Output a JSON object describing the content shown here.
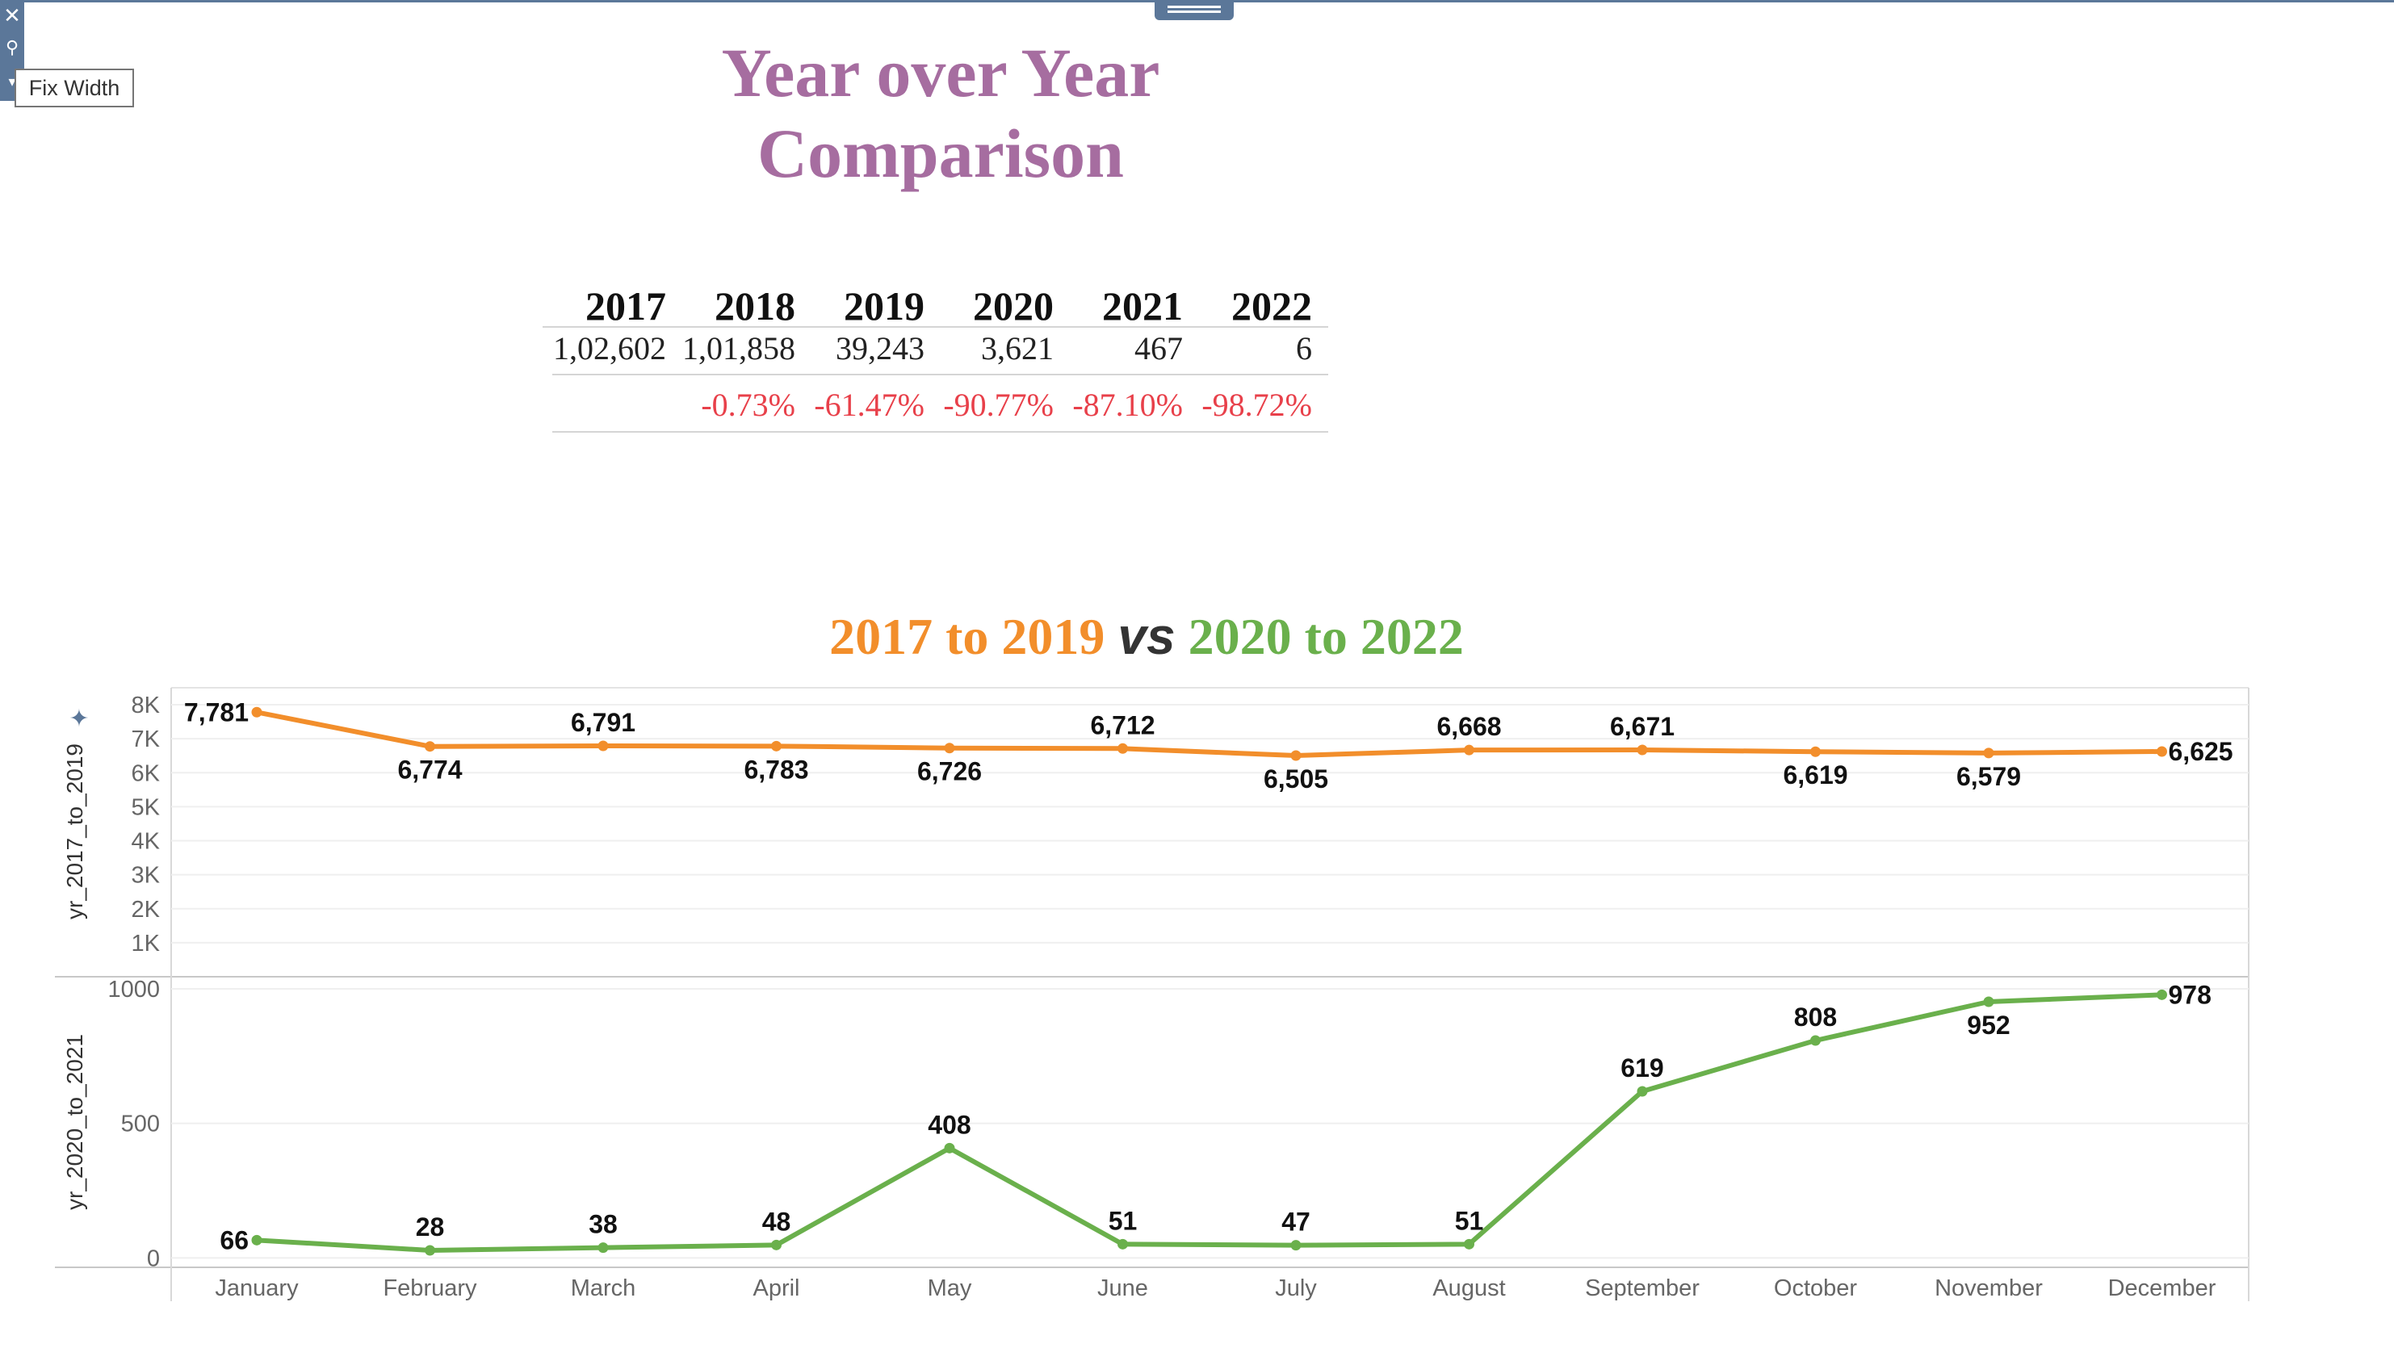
{
  "toolbar": {
    "close_icon": "close-icon",
    "pin_icon": "pin-icon",
    "menu_icon": "dropdown-arrow-icon",
    "fix_width_label": "Fix Width"
  },
  "title": {
    "line1": "Year over Year",
    "line2": "Comparison"
  },
  "colors": {
    "title": "#a66da0",
    "orange": "#f28e2b",
    "green": "#6ab04c",
    "negative": "#e8404a"
  },
  "yoy_table": {
    "years": [
      "2017",
      "2018",
      "2019",
      "2020",
      "2021",
      "2022"
    ],
    "totals": [
      "1,02,602",
      "1,01,858",
      "39,243",
      "3,621",
      "467",
      "6"
    ],
    "pct_change": [
      "",
      "-0.73%",
      "-61.47%",
      "-90.77%",
      "-87.10%",
      "-98.72%"
    ]
  },
  "chart_title": {
    "part1": "2017 to 2019",
    "vs": "vs",
    "part2": "2020 to 2022"
  },
  "chart_data": {
    "type": "line",
    "categories": [
      "January",
      "February",
      "March",
      "April",
      "May",
      "June",
      "July",
      "August",
      "September",
      "October",
      "November",
      "December"
    ],
    "series": [
      {
        "name": "yr_2017_to_2019",
        "color": "#f28e2b",
        "values": [
          7781,
          6774,
          6791,
          6783,
          6726,
          6712,
          6505,
          6668,
          6671,
          6619,
          6579,
          6625
        ],
        "labels": [
          "7,781",
          "6,774",
          "6,791",
          "6,783",
          "6,726",
          "6,712",
          "6,505",
          "6,668",
          "6,671",
          "6,619",
          "6,579",
          "6,625"
        ],
        "label_side": [
          "left",
          "below",
          "above",
          "below",
          "below",
          "above",
          "below",
          "above",
          "above",
          "below",
          "below",
          "right"
        ],
        "ylabel": "yr_2017_to_2019",
        "ylim": [
          0,
          8500
        ],
        "yticks": [
          1000,
          2000,
          3000,
          4000,
          5000,
          6000,
          7000,
          8000
        ],
        "ytick_labels": [
          "1K",
          "2K",
          "3K",
          "4K",
          "5K",
          "6K",
          "7K",
          "8K"
        ]
      },
      {
        "name": "yr_2020_to_2021",
        "color": "#6ab04c",
        "values": [
          66,
          28,
          38,
          48,
          408,
          51,
          47,
          51,
          619,
          808,
          952,
          978
        ],
        "labels": [
          "66",
          "28",
          "38",
          "48",
          "408",
          "51",
          "47",
          "51",
          "619",
          "808",
          "952",
          "978"
        ],
        "label_side": [
          "left",
          "above",
          "above",
          "above",
          "above",
          "above",
          "above",
          "above",
          "above",
          "above",
          "below",
          "right"
        ],
        "ylabel": "yr_2020_to_2021",
        "ylim": [
          -35,
          1045
        ],
        "yticks": [
          0,
          500,
          1000
        ],
        "ytick_labels": [
          "0",
          "500",
          "1000"
        ]
      }
    ],
    "grid": true
  }
}
